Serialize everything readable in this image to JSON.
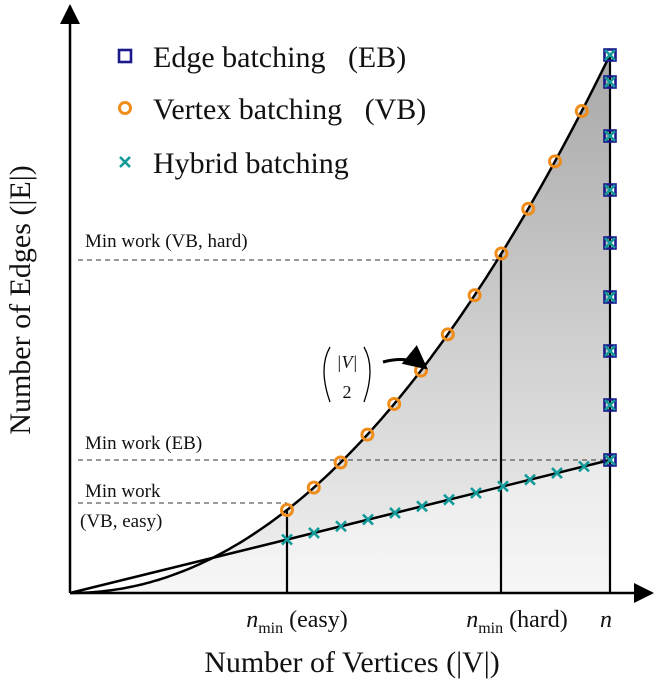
{
  "legend": [
    "Edge batching   (EB)",
    "Vertex batching   (VB)",
    "Hybrid batching"
  ],
  "annotations": {
    "vb_hard": "Min work (VB, hard)",
    "eb": "Min work (EB)",
    "vb_easy_1": "Min work",
    "vb_easy_2": "(VB, easy)",
    "binom_top": "|V|",
    "binom_bottom": "2"
  },
  "x_ticks": [
    {
      "n": "n",
      "sub": "min",
      "rest": "(easy)"
    },
    {
      "n": "n",
      "sub": "min",
      "rest": "(hard)"
    },
    {
      "n": "n"
    }
  ],
  "x_label": "Number of Vertices (|V|)",
  "y_label": "Number of Edges (|E|)"
}
